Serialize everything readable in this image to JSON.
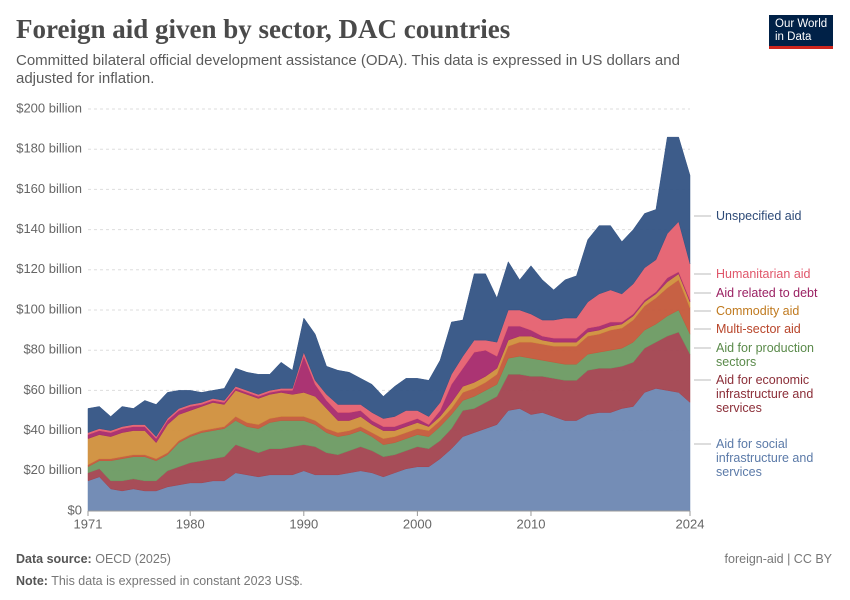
{
  "chart_data": {
    "type": "stacked_area",
    "title": "Foreign aid given by sector, DAC countries",
    "subtitle": "Committed bilateral official development assistance (ODA). This data is expressed in US dollars and adjusted for inflation.",
    "logo": "Our World in Data",
    "x": [
      1971,
      1972,
      1973,
      1974,
      1975,
      1976,
      1977,
      1978,
      1979,
      1980,
      1981,
      1982,
      1983,
      1984,
      1985,
      1986,
      1987,
      1988,
      1989,
      1990,
      1991,
      1992,
      1993,
      1994,
      1995,
      1996,
      1997,
      1998,
      1999,
      2000,
      2001,
      2002,
      2003,
      2004,
      2005,
      2006,
      2007,
      2008,
      2009,
      2010,
      2011,
      2012,
      2013,
      2014,
      2015,
      2016,
      2017,
      2018,
      2019,
      2020,
      2021,
      2022,
      2023,
      2024
    ],
    "xlim": [
      1971,
      2024
    ],
    "xticks": [
      1971,
      1980,
      1990,
      2000,
      2010,
      2024
    ],
    "ylim": [
      0,
      200
    ],
    "yticks": [
      {
        "value": 0,
        "label": "$0"
      },
      {
        "value": 20,
        "label": "$20 billion"
      },
      {
        "value": 40,
        "label": "$40 billion"
      },
      {
        "value": 60,
        "label": "$60 billion"
      },
      {
        "value": 80,
        "label": "$80 billion"
      },
      {
        "value": 100,
        "label": "$100 billion"
      },
      {
        "value": 120,
        "label": "$120 billion"
      },
      {
        "value": 140,
        "label": "$140 billion"
      },
      {
        "value": 160,
        "label": "$160 billion"
      },
      {
        "value": 180,
        "label": "$180 billion"
      },
      {
        "value": 200,
        "label": "$200 billion"
      }
    ],
    "grid": true,
    "series": [
      {
        "name": "Aid for social infrastructure and services",
        "color": "#6d87b2",
        "values": [
          15,
          17,
          11,
          10,
          11,
          10,
          10,
          12,
          13,
          14,
          14,
          15,
          15,
          19,
          18,
          17,
          18,
          18,
          18,
          20,
          18,
          18,
          18,
          19,
          20,
          19,
          17,
          19,
          21,
          22,
          22,
          26,
          31,
          37,
          39,
          41,
          43,
          50,
          51,
          48,
          49,
          47,
          45,
          45,
          48,
          49,
          49,
          51,
          52,
          59,
          61,
          60,
          59,
          54
        ]
      },
      {
        "name": "Aid for economic infrastructure and services",
        "color": "#a2434f",
        "values": [
          4,
          4,
          4,
          5,
          5,
          5,
          5,
          8,
          9,
          10,
          11,
          11,
          12,
          14,
          13,
          12,
          13,
          13,
          14,
          13,
          14,
          11,
          10,
          11,
          12,
          11,
          10,
          9,
          9,
          10,
          9,
          9,
          10,
          13,
          12,
          13,
          14,
          18,
          17,
          19,
          18,
          19,
          20,
          20,
          22,
          22,
          22,
          21,
          22,
          22,
          23,
          27,
          30,
          24
        ]
      },
      {
        "name": "Aid for production sectors",
        "color": "#6c9a62",
        "values": [
          3,
          4,
          10,
          11,
          11,
          12,
          10,
          8,
          12,
          13,
          14,
          14,
          14,
          12,
          11,
          12,
          13,
          14,
          13,
          12,
          11,
          10,
          9,
          8,
          8,
          7,
          6,
          6,
          6,
          6,
          6,
          7,
          7,
          5,
          6,
          6,
          6,
          8,
          9,
          9,
          8,
          8,
          8,
          8,
          8,
          8,
          9,
          9,
          10,
          9,
          9,
          10,
          11,
          10
        ]
      },
      {
        "name": "Multi-sector aid",
        "color": "#c4583a",
        "values": [
          1,
          1,
          1,
          1,
          1,
          1,
          1,
          1,
          1,
          1,
          1,
          1,
          1,
          2,
          2,
          2,
          2,
          2,
          2,
          2,
          2,
          2,
          2,
          2,
          2,
          2,
          3,
          3,
          3,
          3,
          3,
          3,
          3,
          4,
          4,
          4,
          5,
          6,
          7,
          8,
          8,
          8,
          9,
          9,
          9,
          9,
          10,
          10,
          11,
          12,
          13,
          14,
          15,
          13
        ]
      },
      {
        "name": "Commodity aid",
        "color": "#d08f3c",
        "values": [
          13,
          12,
          11,
          12,
          12,
          12,
          8,
          14,
          13,
          12,
          12,
          13,
          11,
          13,
          14,
          13,
          12,
          12,
          11,
          12,
          12,
          10,
          6,
          5,
          5,
          4,
          4,
          3,
          3,
          3,
          2,
          2,
          3,
          3,
          3,
          3,
          3,
          3,
          3,
          3,
          2,
          2,
          2,
          2,
          2,
          2,
          2,
          2,
          2,
          2,
          2,
          3,
          3,
          3
        ]
      },
      {
        "name": "Aid related to debt",
        "color": "#a6296c",
        "values": [
          2,
          2,
          2,
          2,
          2,
          2,
          2,
          2,
          2,
          2,
          1,
          1,
          1,
          1,
          1,
          1,
          1,
          1,
          2,
          18,
          6,
          4,
          4,
          4,
          3,
          2,
          2,
          2,
          2,
          2,
          1,
          3,
          9,
          9,
          15,
          13,
          6,
          7,
          5,
          3,
          2,
          2,
          2,
          2,
          2,
          2,
          2,
          1,
          1,
          1,
          1,
          2,
          1,
          1
        ]
      },
      {
        "name": "Humanitarian aid",
        "color": "#e5606f",
        "values": [
          1,
          1,
          1,
          1,
          1,
          1,
          1,
          1,
          1,
          1,
          1,
          1,
          1,
          1,
          1,
          1,
          1,
          1,
          1,
          2,
          2,
          3,
          4,
          4,
          3,
          4,
          4,
          5,
          6,
          4,
          4,
          4,
          5,
          6,
          6,
          5,
          7,
          8,
          8,
          8,
          8,
          9,
          10,
          10,
          13,
          16,
          16,
          14,
          15,
          16,
          16,
          22,
          25,
          18
        ]
      },
      {
        "name": "Unspecified aid",
        "color": "#335384",
        "values": [
          12,
          11,
          7,
          10,
          8,
          12,
          16,
          13,
          9,
          7,
          5,
          4,
          6,
          9,
          9,
          10,
          8,
          13,
          9,
          17,
          23,
          14,
          17,
          16,
          13,
          14,
          11,
          15,
          16,
          16,
          18,
          21,
          26,
          18,
          33,
          33,
          22,
          24,
          15,
          24,
          20,
          15,
          19,
          21,
          31,
          34,
          32,
          26,
          27,
          27,
          25,
          48,
          42,
          44
        ]
      }
    ],
    "footer": {
      "source_label": "Data source:",
      "source": "OECD (2025)",
      "note_label": "Note:",
      "note": "This data is expressed in constant 2023 US$.",
      "slug": "foreign-aid | CC BY"
    }
  }
}
